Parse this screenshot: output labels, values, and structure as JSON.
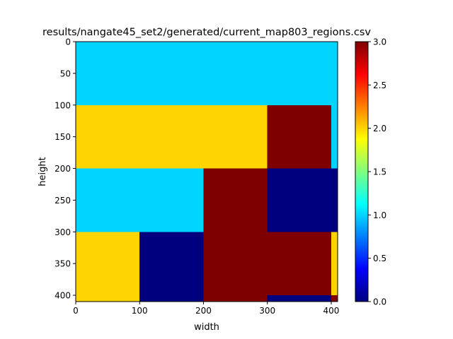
{
  "chart_data": {
    "type": "heatmap",
    "title": "results/nangate45_set2/generated/current_map803_regions.csv",
    "xlabel": "width",
    "ylabel": "height",
    "xlim": [
      0,
      410
    ],
    "ylim": [
      410,
      0
    ],
    "x_ticks": [
      0,
      100,
      200,
      300,
      400
    ],
    "y_ticks": [
      0,
      50,
      100,
      150,
      200,
      250,
      300,
      350,
      400
    ],
    "colormap": "jet",
    "color_range": [
      0.0,
      3.0
    ],
    "colorbar_ticks": [
      "0.0",
      "0.5",
      "1.0",
      "1.5",
      "2.0",
      "2.5",
      "3.0"
    ],
    "regions": [
      {
        "x0": 0,
        "x1": 410,
        "y0": 0,
        "y1": 100,
        "value": 1
      },
      {
        "x0": 0,
        "x1": 300,
        "y0": 100,
        "y1": 200,
        "value": 2
      },
      {
        "x0": 300,
        "x1": 400,
        "y0": 100,
        "y1": 200,
        "value": 3
      },
      {
        "x0": 400,
        "x1": 410,
        "y0": 100,
        "y1": 200,
        "value": 1
      },
      {
        "x0": 0,
        "x1": 200,
        "y0": 200,
        "y1": 300,
        "value": 1
      },
      {
        "x0": 200,
        "x1": 300,
        "y0": 200,
        "y1": 410,
        "value": 3
      },
      {
        "x0": 300,
        "x1": 410,
        "y0": 200,
        "y1": 300,
        "value": 0
      },
      {
        "x0": 0,
        "x1": 100,
        "y0": 300,
        "y1": 410,
        "value": 2
      },
      {
        "x0": 100,
        "x1": 200,
        "y0": 300,
        "y1": 410,
        "value": 0
      },
      {
        "x0": 300,
        "x1": 400,
        "y0": 300,
        "y1": 400,
        "value": 3
      },
      {
        "x0": 400,
        "x1": 410,
        "y0": 300,
        "y1": 400,
        "value": 2
      },
      {
        "x0": 300,
        "x1": 400,
        "y0": 400,
        "y1": 410,
        "value": 0
      },
      {
        "x0": 400,
        "x1": 410,
        "y0": 400,
        "y1": 410,
        "value": 3
      }
    ]
  }
}
